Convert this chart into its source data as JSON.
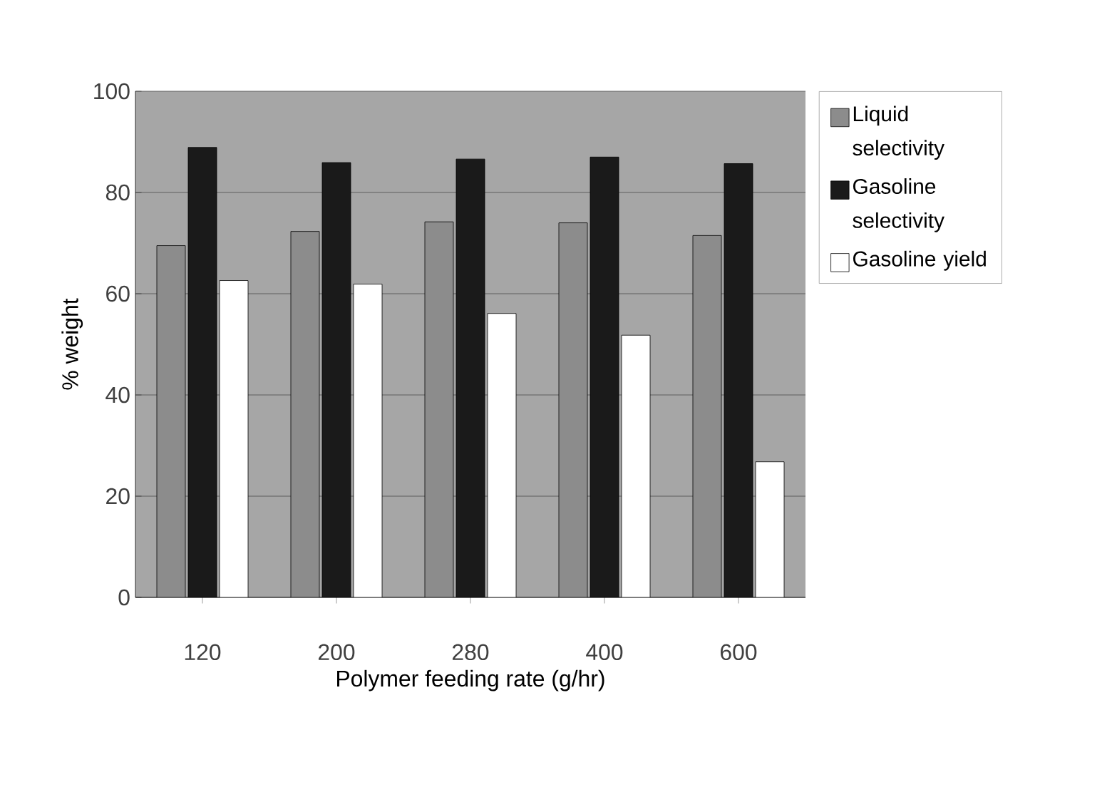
{
  "chart_data": {
    "type": "bar",
    "xlabel": "Polymer feeding rate (g/hr)",
    "ylabel": "% weight",
    "categories": [
      "120",
      "200",
      "280",
      "400",
      "600"
    ],
    "series": [
      {
        "name": "Liquid selectivity",
        "color": "#8c8c8c",
        "values": [
          69.5,
          72.3,
          74.2,
          74,
          71.5
        ]
      },
      {
        "name": "Gasoline selectivity",
        "color": "#1a1a1a",
        "values": [
          88.9,
          85.9,
          86.6,
          87,
          85.7
        ]
      },
      {
        "name": "Gasoline yield",
        "color": "#ffffff",
        "values": [
          62.6,
          61.9,
          56.1,
          51.8,
          26.8
        ]
      }
    ],
    "ylim": [
      0,
      100
    ],
    "yticks": [
      0,
      20,
      40,
      60,
      80,
      100
    ],
    "grid": "y",
    "legend": "right"
  }
}
